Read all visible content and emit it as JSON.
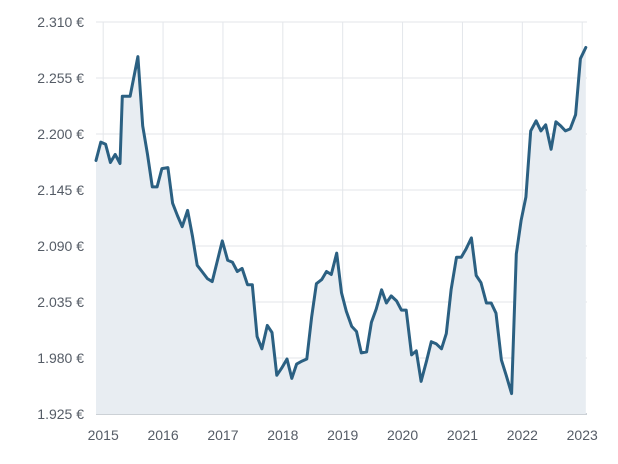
{
  "colors": {
    "line": "#2b6082",
    "area": "#e8edf2",
    "grid": "#e3e6ea",
    "text": "#555c66"
  },
  "chart_data": {
    "type": "area",
    "title": "",
    "xlabel": "",
    "ylabel": "",
    "grid": true,
    "legend": "none",
    "xlim": [
      2014.88,
      2023.08
    ],
    "ylim": [
      1925,
      2310
    ],
    "y_ticks": [
      {
        "value": 1925,
        "label": "1.925 €"
      },
      {
        "value": 1980,
        "label": "1.980 €"
      },
      {
        "value": 2035,
        "label": "2.035 €"
      },
      {
        "value": 2090,
        "label": "2.090 €"
      },
      {
        "value": 2145,
        "label": "2.145 €"
      },
      {
        "value": 2200,
        "label": "2.200 €"
      },
      {
        "value": 2255,
        "label": "2.255 €"
      },
      {
        "value": 2310,
        "label": "2.310 €"
      }
    ],
    "x_ticks": [
      {
        "value": 2015,
        "label": "2015"
      },
      {
        "value": 2016,
        "label": "2016"
      },
      {
        "value": 2017,
        "label": "2017"
      },
      {
        "value": 2018,
        "label": "2018"
      },
      {
        "value": 2019,
        "label": "2019"
      },
      {
        "value": 2020,
        "label": "2020"
      },
      {
        "value": 2021,
        "label": "2021"
      },
      {
        "value": 2022,
        "label": "2022"
      },
      {
        "value": 2023,
        "label": "2023"
      }
    ],
    "series": [
      {
        "points": [
          [
            2014.88,
            2174
          ],
          [
            2014.96,
            2192
          ],
          [
            2015.04,
            2190
          ],
          [
            2015.12,
            2172
          ],
          [
            2015.2,
            2180
          ],
          [
            2015.28,
            2171
          ],
          [
            2015.32,
            2237
          ],
          [
            2015.45,
            2237
          ],
          [
            2015.58,
            2276
          ],
          [
            2015.66,
            2208
          ],
          [
            2015.74,
            2180
          ],
          [
            2015.82,
            2148
          ],
          [
            2015.9,
            2148
          ],
          [
            2015.98,
            2166
          ],
          [
            2016.08,
            2167
          ],
          [
            2016.16,
            2132
          ],
          [
            2016.24,
            2120
          ],
          [
            2016.32,
            2109
          ],
          [
            2016.41,
            2125
          ],
          [
            2016.49,
            2100
          ],
          [
            2016.57,
            2071
          ],
          [
            2016.65,
            2065
          ],
          [
            2016.74,
            2058
          ],
          [
            2016.82,
            2055
          ],
          [
            2016.9,
            2074
          ],
          [
            2016.99,
            2095
          ],
          [
            2017.08,
            2076
          ],
          [
            2017.16,
            2074
          ],
          [
            2017.24,
            2065
          ],
          [
            2017.32,
            2068
          ],
          [
            2017.41,
            2052
          ],
          [
            2017.49,
            2052
          ],
          [
            2017.57,
            2001
          ],
          [
            2017.65,
            1989
          ],
          [
            2017.74,
            2012
          ],
          [
            2017.82,
            2005
          ],
          [
            2017.9,
            1963
          ],
          [
            2017.98,
            1970
          ],
          [
            2018.07,
            1979
          ],
          [
            2018.15,
            1960
          ],
          [
            2018.23,
            1974
          ],
          [
            2018.32,
            1977
          ],
          [
            2018.4,
            1979
          ],
          [
            2018.48,
            2020
          ],
          [
            2018.56,
            2053
          ],
          [
            2018.65,
            2057
          ],
          [
            2018.73,
            2065
          ],
          [
            2018.81,
            2062
          ],
          [
            2018.9,
            2083
          ],
          [
            2018.98,
            2044
          ],
          [
            2019.06,
            2026
          ],
          [
            2019.15,
            2011
          ],
          [
            2019.23,
            2006
          ],
          [
            2019.31,
            1985
          ],
          [
            2019.4,
            1986
          ],
          [
            2019.48,
            2015
          ],
          [
            2019.56,
            2028
          ],
          [
            2019.65,
            2047
          ],
          [
            2019.73,
            2034
          ],
          [
            2019.81,
            2041
          ],
          [
            2019.9,
            2036
          ],
          [
            2019.98,
            2027
          ],
          [
            2020.06,
            2027
          ],
          [
            2020.15,
            1983
          ],
          [
            2020.23,
            1987
          ],
          [
            2020.31,
            1957
          ],
          [
            2020.4,
            1977
          ],
          [
            2020.48,
            1996
          ],
          [
            2020.56,
            1994
          ],
          [
            2020.65,
            1989
          ],
          [
            2020.73,
            2004
          ],
          [
            2020.81,
            2047
          ],
          [
            2020.9,
            2079
          ],
          [
            2020.98,
            2079
          ],
          [
            2021.06,
            2087
          ],
          [
            2021.15,
            2098
          ],
          [
            2021.23,
            2061
          ],
          [
            2021.31,
            2054
          ],
          [
            2021.4,
            2034
          ],
          [
            2021.48,
            2034
          ],
          [
            2021.56,
            2024
          ],
          [
            2021.65,
            1978
          ],
          [
            2021.73,
            1963
          ],
          [
            2021.82,
            1945
          ],
          [
            2021.9,
            2082
          ],
          [
            2021.98,
            2115
          ],
          [
            2022.06,
            2138
          ],
          [
            2022.14,
            2203
          ],
          [
            2022.23,
            2213
          ],
          [
            2022.31,
            2203
          ],
          [
            2022.39,
            2209
          ],
          [
            2022.48,
            2185
          ],
          [
            2022.56,
            2212
          ],
          [
            2022.64,
            2208
          ],
          [
            2022.72,
            2203
          ],
          [
            2022.8,
            2205
          ],
          [
            2022.89,
            2219
          ],
          [
            2022.97,
            2274
          ],
          [
            2023.06,
            2285
          ]
        ]
      }
    ]
  }
}
